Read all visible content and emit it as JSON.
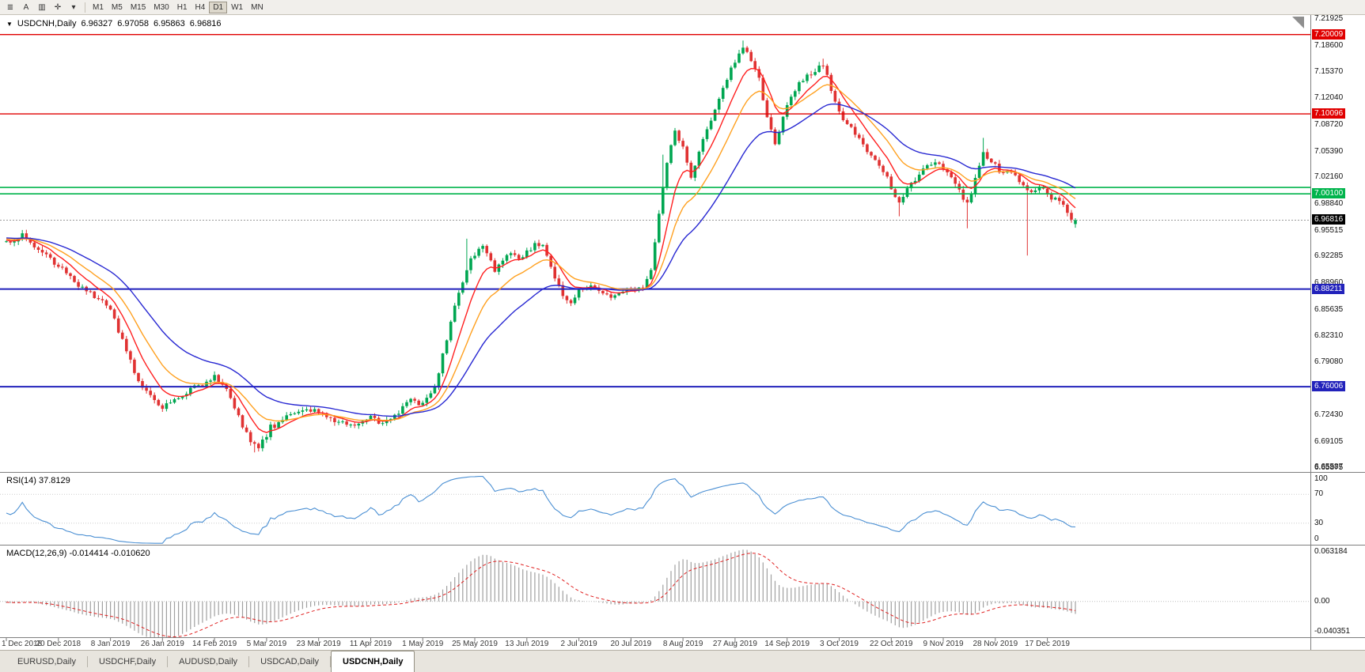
{
  "toolbar": {
    "icons": [
      {
        "name": "menu-icon",
        "glyph": "≣"
      },
      {
        "name": "text-tool-icon",
        "glyph": "A"
      },
      {
        "name": "chart-window-icon",
        "glyph": "▥"
      },
      {
        "name": "crosshair-tool-icon",
        "glyph": "✛"
      },
      {
        "name": "dropdown-arrow-icon",
        "glyph": "▾"
      }
    ],
    "timeframes": [
      "M1",
      "M5",
      "M15",
      "M30",
      "H1",
      "H4",
      "D1",
      "W1",
      "MN"
    ],
    "active_timeframe": "D1"
  },
  "chart_header": {
    "collapse_icon": "▼",
    "symbol": "USDCNH,Daily",
    "open": "6.96327",
    "high": "6.97058",
    "low": "6.95863",
    "close": "6.96816"
  },
  "price_scale": {
    "ticks": [
      "7.21925",
      "7.18600",
      "7.15370",
      "7.12040",
      "7.08720",
      "7.05390",
      "7.02160",
      "6.98840",
      "6.95515",
      "6.92285",
      "6.88960",
      "6.85635",
      "6.82310",
      "6.79080",
      "6.75760",
      "6.72430",
      "6.69105",
      "6.65875"
    ],
    "bottom_tick": "6.65587",
    "current_price": {
      "value": 6.96816,
      "label": "6.96816",
      "bg": "#000000"
    }
  },
  "hlines": [
    {
      "price": 7.20009,
      "label": "7.20009",
      "color": "#e00000",
      "width": 1.4
    },
    {
      "price": 7.10096,
      "label": "7.10096",
      "color": "#e00000",
      "width": 1.4
    },
    {
      "price": 7.009,
      "label": null,
      "color": "#00b44c",
      "width": 1.6
    },
    {
      "price": 7.001,
      "label": "7.00100",
      "color": "#00b44c",
      "width": 1.6
    },
    {
      "price": 6.88211,
      "label": "6.88211",
      "color": "#2222bb",
      "width": 2
    },
    {
      "price": 6.76006,
      "label": "6.76006",
      "color": "#2222bb",
      "width": 2
    }
  ],
  "rsi": {
    "label": "RSI(14) 37.8129",
    "levels": [
      100,
      70,
      30,
      0
    ],
    "level_labels": [
      "100",
      "70",
      "30",
      "0"
    ]
  },
  "macd": {
    "label": "MACD(12,26,9) -0.014414 -0.010620",
    "scale_labels": [
      "0.063184",
      "0.00",
      "-0.040351"
    ],
    "max": 0.063184,
    "min": -0.040351
  },
  "dates": [
    "1 Dec 2018",
    "20 Dec 2018",
    "8 Jan 2019",
    "26 Jan 2019",
    "14 Feb 2019",
    "5 Mar 2019",
    "23 Mar 2019",
    "11 Apr 2019",
    "1 May 2019",
    "25 May 2019",
    "13 Jun 2019",
    "2 Jul 2019",
    "20 Jul 2019",
    "8 Aug 2019",
    "27 Aug 2019",
    "14 Sep 2019",
    "3 Oct 2019",
    "22 Oct 2019",
    "9 Nov 2019",
    "28 Nov 2019",
    "17 Dec 2019"
  ],
  "tabs": [
    {
      "label": "EURUSD,Daily",
      "active": false
    },
    {
      "label": "USDCHF,Daily",
      "active": false
    },
    {
      "label": "AUDUSD,Daily",
      "active": false
    },
    {
      "label": "USDCAD,Daily",
      "active": false
    },
    {
      "label": "USDCNH,Daily",
      "active": true
    }
  ],
  "colors": {
    "bull": "#00a651",
    "bear": "#e03232",
    "rsi_line": "#4a8fd3",
    "macd_hist": "#a0a0a0",
    "macd_signal": "#e02020"
  },
  "chart_data": {
    "type": "candlestick",
    "symbol": "USDCNH",
    "timeframe": "Daily",
    "ohlc_current": {
      "open": 6.96327,
      "high": 6.97058,
      "low": 6.95863,
      "close": 6.96816
    },
    "price_range": [
      6.6535,
      7.2245
    ],
    "candle_count": 268,
    "date_label_step": 13,
    "pre_anchors": [
      [
        -60,
        6.938
      ],
      [
        -45,
        6.962
      ],
      [
        -30,
        6.941
      ],
      [
        -15,
        6.953
      ],
      [
        -5,
        6.944
      ]
    ],
    "close_anchors": [
      [
        0,
        6.94
      ],
      [
        4,
        6.951
      ],
      [
        8,
        6.932
      ],
      [
        13,
        6.913
      ],
      [
        17,
        6.893
      ],
      [
        20,
        6.879
      ],
      [
        23,
        6.869
      ],
      [
        26,
        6.856
      ],
      [
        29,
        6.818
      ],
      [
        32,
        6.778
      ],
      [
        35,
        6.756
      ],
      [
        39,
        6.734
      ],
      [
        43,
        6.747
      ],
      [
        47,
        6.758
      ],
      [
        52,
        6.772
      ],
      [
        55,
        6.757
      ],
      [
        58,
        6.723
      ],
      [
        61,
        6.692
      ],
      [
        63,
        6.684
      ],
      [
        66,
        6.709
      ],
      [
        70,
        6.723
      ],
      [
        74,
        6.733
      ],
      [
        78,
        6.729
      ],
      [
        82,
        6.716
      ],
      [
        86,
        6.711
      ],
      [
        91,
        6.723
      ],
      [
        94,
        6.713
      ],
      [
        98,
        6.729
      ],
      [
        101,
        6.741
      ],
      [
        104,
        6.738
      ],
      [
        107,
        6.759
      ],
      [
        110,
        6.82
      ],
      [
        113,
        6.879
      ],
      [
        116,
        6.919
      ],
      [
        119,
        6.937
      ],
      [
        122,
        6.906
      ],
      [
        125,
        6.927
      ],
      [
        128,
        6.921
      ],
      [
        131,
        6.933
      ],
      [
        134,
        6.939
      ],
      [
        136,
        6.909
      ],
      [
        139,
        6.874
      ],
      [
        141,
        6.863
      ],
      [
        143,
        6.881
      ],
      [
        146,
        6.886
      ],
      [
        149,
        6.879
      ],
      [
        152,
        6.873
      ],
      [
        156,
        6.882
      ],
      [
        159,
        6.887
      ],
      [
        161,
        6.904
      ],
      [
        163,
        6.977
      ],
      [
        165,
        7.043
      ],
      [
        167,
        7.079
      ],
      [
        169,
        7.059
      ],
      [
        171,
        7.023
      ],
      [
        173,
        7.053
      ],
      [
        175,
        7.083
      ],
      [
        177,
        7.104
      ],
      [
        179,
        7.133
      ],
      [
        181,
        7.156
      ],
      [
        184,
        7.184
      ],
      [
        186,
        7.171
      ],
      [
        188,
        7.147
      ],
      [
        190,
        7.093
      ],
      [
        192,
        7.063
      ],
      [
        194,
        7.093
      ],
      [
        196,
        7.123
      ],
      [
        199,
        7.143
      ],
      [
        202,
        7.157
      ],
      [
        204,
        7.163
      ],
      [
        206,
        7.131
      ],
      [
        208,
        7.103
      ],
      [
        211,
        7.083
      ],
      [
        214,
        7.063
      ],
      [
        217,
        7.043
      ],
      [
        220,
        7.019
      ],
      [
        223,
        6.989
      ],
      [
        226,
        7.013
      ],
      [
        229,
        7.033
      ],
      [
        232,
        7.043
      ],
      [
        235,
        7.029
      ],
      [
        238,
        7.006
      ],
      [
        240,
        6.989
      ],
      [
        242,
        7.021
      ],
      [
        244,
        7.056
      ],
      [
        246,
        7.041
      ],
      [
        248,
        7.029
      ],
      [
        250,
        7.031
      ],
      [
        252,
        7.023
      ],
      [
        254,
        7.013
      ],
      [
        256,
        7.001
      ],
      [
        258,
        7.009
      ],
      [
        260,
        7.003
      ],
      [
        262,
        6.993
      ],
      [
        264,
        6.986
      ],
      [
        266,
        6.97
      ],
      [
        267,
        6.963
      ]
    ],
    "spikes": [
      {
        "i": 62,
        "low": 6.678
      },
      {
        "i": 115,
        "high": 6.945
      },
      {
        "i": 164,
        "high": 7.05
      },
      {
        "i": 184,
        "high": 7.1926
      },
      {
        "i": 204,
        "high": 7.17
      },
      {
        "i": 223,
        "low": 6.973
      },
      {
        "i": 240,
        "low": 6.958
      },
      {
        "i": 244,
        "high": 7.071
      },
      {
        "i": 255,
        "low": 6.924
      }
    ],
    "moving_averages": [
      {
        "period": 8,
        "color": "#ff1f1f",
        "type": "ema"
      },
      {
        "period": 16,
        "color": "#ffa01f",
        "type": "ema"
      },
      {
        "period": 32,
        "color": "#2828d2",
        "type": "ema"
      }
    ],
    "indicators": {
      "rsi": {
        "period": 14,
        "last": 37.8129
      },
      "macd": {
        "fast": 12,
        "slow": 26,
        "signal": 9,
        "last_main": -0.014414,
        "last_signal": -0.01062
      }
    }
  }
}
